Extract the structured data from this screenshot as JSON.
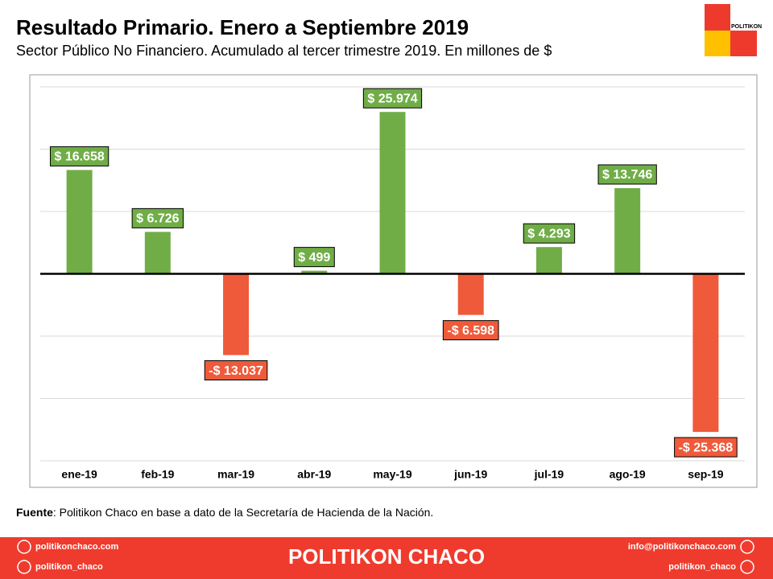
{
  "chart_data": {
    "type": "bar",
    "title": "Resultado Primario. Enero a Septiembre 2019",
    "subtitle": "Sector Público No Financiero. Acumulado  al tercer trimestre 2019. En millones de $",
    "categories": [
      "ene-19",
      "feb-19",
      "mar-19",
      "abr-19",
      "may-19",
      "jun-19",
      "jul-19",
      "ago-19",
      "sep-19"
    ],
    "values": [
      16658,
      6726,
      -13037,
      499,
      25974,
      -6598,
      4293,
      13746,
      -25368
    ],
    "value_labels": [
      "$ 16.658",
      "$ 6.726",
      "-$ 13.037",
      "$ 499",
      "$ 25.974",
      "-$ 6.598",
      "$ 4.293",
      "$ 13.746",
      "-$ 25.368"
    ],
    "color_positive": "#70ad47",
    "color_negative": "#ef5a3a",
    "ylim": [
      -30000,
      30000
    ],
    "yticks": [
      -30000,
      -20000,
      -10000,
      0,
      10000,
      20000,
      30000
    ],
    "grid": true
  },
  "logo": {
    "text": "POLITIKON"
  },
  "source": {
    "label": "Fuente",
    "text": ":  Politikon  Chaco  en  base  a  dato  de  la  Secretaría  de  Hacienda  de  la  Nación."
  },
  "footer": {
    "website": "politikonchaco.com",
    "instagram": "politikon_chaco",
    "brand": "POLITIKON CHACO",
    "email": "info@politikonchaco.com",
    "twitter": "politikon_chaco"
  }
}
